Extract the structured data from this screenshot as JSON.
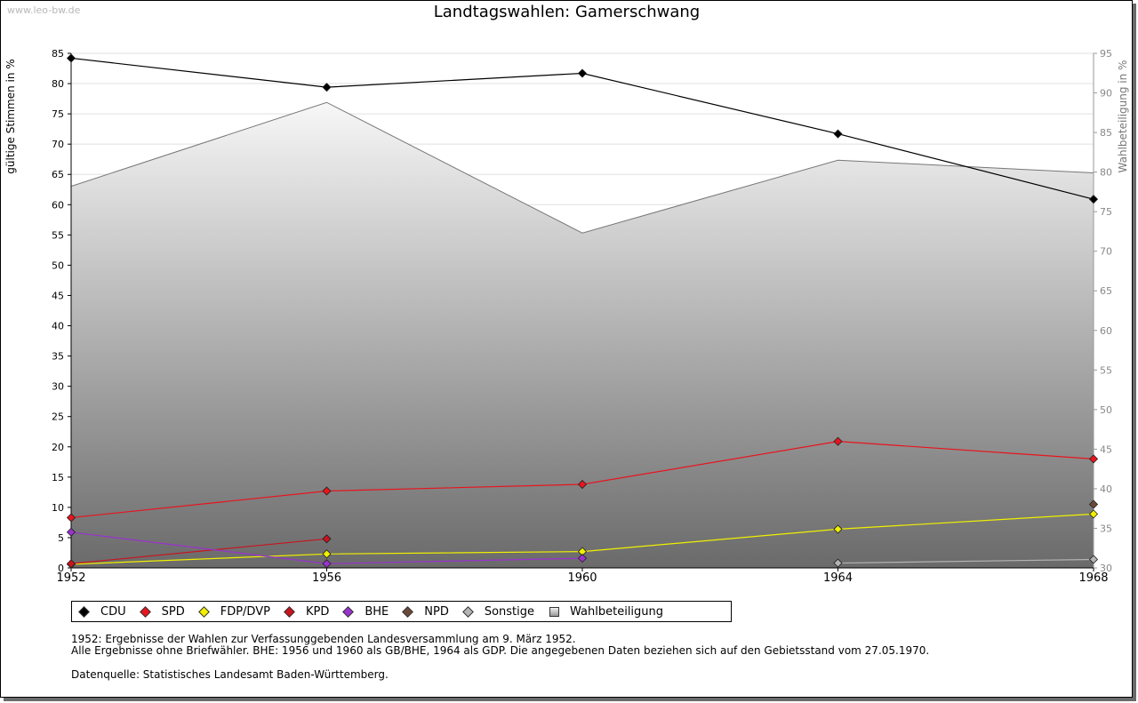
{
  "watermark": "www.leo-bw.de",
  "chart_data": {
    "type": "line",
    "title": "Landtagswahlen: Gamerschwang",
    "ylabel": "gültige Stimmen in %",
    "y2label": "Wahlbeteiligung in %",
    "x": [
      "1952",
      "1956",
      "1960",
      "1964",
      "1968"
    ],
    "ylim": [
      0,
      85
    ],
    "yticks": [
      0,
      5,
      10,
      15,
      20,
      25,
      30,
      35,
      40,
      45,
      50,
      55,
      60,
      65,
      70,
      75,
      80,
      85
    ],
    "y2lim": [
      30,
      95
    ],
    "y2ticks": [
      30,
      35,
      40,
      45,
      50,
      55,
      60,
      65,
      70,
      75,
      80,
      85,
      90,
      95
    ],
    "grid": true,
    "legend_position": "bottom",
    "series": [
      {
        "name": "CDU",
        "color": "#000000",
        "values": [
          84.2,
          79.4,
          81.7,
          71.7,
          60.9
        ]
      },
      {
        "name": "SPD",
        "color": "#e8141e",
        "values": [
          8.3,
          12.7,
          13.8,
          20.9,
          18.0
        ]
      },
      {
        "name": "FDP/DVP",
        "color": "#f0f000",
        "values": [
          0.6,
          2.3,
          2.7,
          6.4,
          8.9
        ]
      },
      {
        "name": "KPD",
        "color": "#c8141e",
        "values": [
          0.7,
          4.8,
          null,
          null,
          null
        ]
      },
      {
        "name": "BHE",
        "color": "#9a32cd",
        "values": [
          5.9,
          0.7,
          1.6,
          null,
          null
        ]
      },
      {
        "name": "NPD",
        "color": "#6b4a3a",
        "values": [
          null,
          null,
          null,
          null,
          10.5
        ]
      },
      {
        "name": "Sonstige",
        "color": "#b4b4b4",
        "values": [
          null,
          null,
          null,
          0.8,
          1.4
        ]
      }
    ],
    "turnout": {
      "name": "Wahlbeteiligung",
      "axis": "right",
      "values": [
        78.2,
        88.8,
        72.3,
        81.5,
        79.9
      ]
    }
  },
  "notes": [
    "1952: Ergebnisse der Wahlen zur Verfassunggebenden Landesversammlung am 9. März 1952.",
    "Alle Ergebnisse ohne Briefwähler. BHE: 1956 und 1960 als GB/BHE, 1964 als GDP. Die angegebenen Daten beziehen sich auf den Gebietsstand vom 27.05.1970."
  ],
  "source": "Datenquelle: Statistisches Landesamt Baden-Württemberg."
}
